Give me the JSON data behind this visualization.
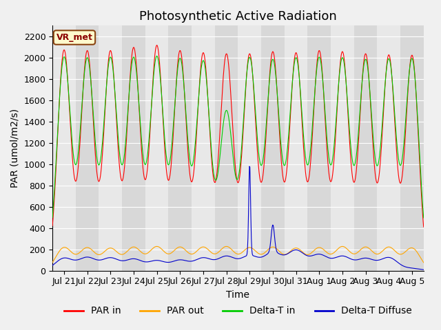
{
  "title": "Photosynthetic Active Radiation",
  "ylabel": "PAR (umol/m2/s)",
  "xlabel": "Time",
  "label_box": "VR_met",
  "ylim": [
    0,
    2300
  ],
  "yticks": [
    0,
    200,
    400,
    600,
    800,
    1000,
    1200,
    1400,
    1600,
    1800,
    2000,
    2200
  ],
  "line_colors": {
    "par_in": "#ff0000",
    "par_out": "#ffa500",
    "delta_t_in": "#00cc00",
    "delta_t_diffuse": "#0000cc"
  },
  "legend_labels": [
    "PAR in",
    "PAR out",
    "Delta-T in",
    "Delta-T Diffuse"
  ],
  "n_days": 16,
  "spike_day": 8,
  "spike2_day": 9,
  "spike_value": 860,
  "spike2_value": 255,
  "x_tick_labels": [
    "Jul 21",
    "Jul 22",
    "Jul 23",
    "Jul 24",
    "Jul 25",
    "Jul 26",
    "Jul 27",
    "Jul 28",
    "Jul 29",
    "Jul 30",
    "Jul 31",
    "Aug 1",
    "Aug 2",
    "Aug 3",
    "Aug 4",
    "Aug 5"
  ],
  "par_in_peaks": [
    2070,
    2060,
    2060,
    2090,
    2110,
    2060,
    2040,
    2030,
    2030,
    2050,
    2040,
    2060,
    2050,
    2030,
    2020,
    2020
  ],
  "par_out_peaks": [
    215,
    210,
    205,
    215,
    220,
    215,
    215,
    220,
    210,
    215,
    205,
    210,
    220,
    215,
    215,
    210
  ],
  "delta_t_peaks": [
    2000,
    1985,
    1990,
    1990,
    2000,
    1980,
    1960,
    1490,
    1990,
    1970,
    1985,
    1990,
    1985,
    1970,
    1975,
    1985
  ],
  "delta_t_diff_normal": [
    115,
    120,
    115,
    105,
    90,
    95,
    115,
    130,
    135,
    165,
    185,
    145,
    130,
    110,
    120,
    20
  ],
  "title_fontsize": 13,
  "legend_fontsize": 10,
  "tick_fontsize": 9
}
